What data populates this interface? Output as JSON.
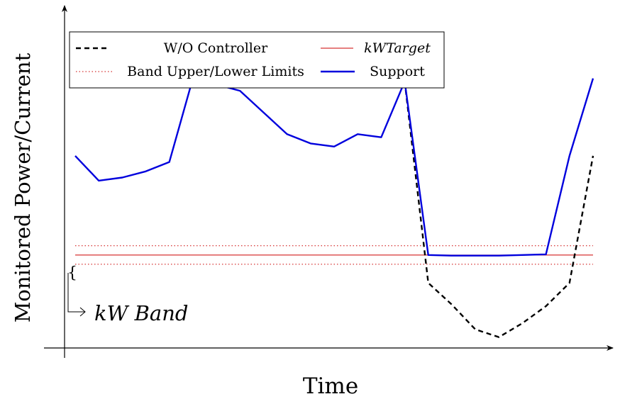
{
  "chart_data": {
    "type": "line",
    "xlabel": "Time",
    "ylabel": "Monitored Power/Current",
    "axes": {
      "x_ticks": false,
      "y_ticks": false,
      "grid": false
    },
    "legend": {
      "placement": "top-left",
      "entries": [
        {
          "label": "W/O Controller",
          "style": "dashed",
          "color": "#000000"
        },
        {
          "label": "kWTarget",
          "style": "solid-thin",
          "color": "#cc0000"
        },
        {
          "label": "Band Upper/Lower Limits",
          "style": "dotted",
          "color": "#cc0000"
        },
        {
          "label": "Support",
          "style": "solid-thick",
          "color": "#0000dd"
        }
      ]
    },
    "annotation": {
      "text": "kW Band",
      "style": "italic"
    },
    "xlim": [
      0,
      25
    ],
    "ylim": [
      0,
      11
    ],
    "kw_target": 3,
    "band_upper": 3.3,
    "band_lower": 2.7,
    "series": [
      {
        "name": "Support",
        "color": "#0000dd",
        "x": [
          0,
          1,
          2,
          3,
          4,
          5,
          6,
          7,
          8,
          9,
          10,
          11,
          12,
          13,
          14,
          15,
          16,
          17,
          18,
          19,
          20,
          21,
          22
        ],
        "y": [
          6.2,
          5.4,
          5.5,
          5.7,
          6.0,
          8.7,
          8.5,
          8.3,
          7.6,
          6.9,
          6.6,
          6.5,
          6.9,
          6.8,
          8.6,
          3.0,
          2.98,
          2.98,
          2.98,
          3.0,
          3.02,
          6.2,
          8.7
        ]
      },
      {
        "name": "W/O Controller",
        "color": "#000000",
        "x": [
          14,
          15,
          16,
          17,
          18,
          19,
          20,
          21,
          22
        ],
        "y": [
          8.6,
          2.1,
          1.4,
          0.6,
          0.35,
          0.8,
          1.35,
          2.1,
          6.2
        ]
      }
    ]
  }
}
